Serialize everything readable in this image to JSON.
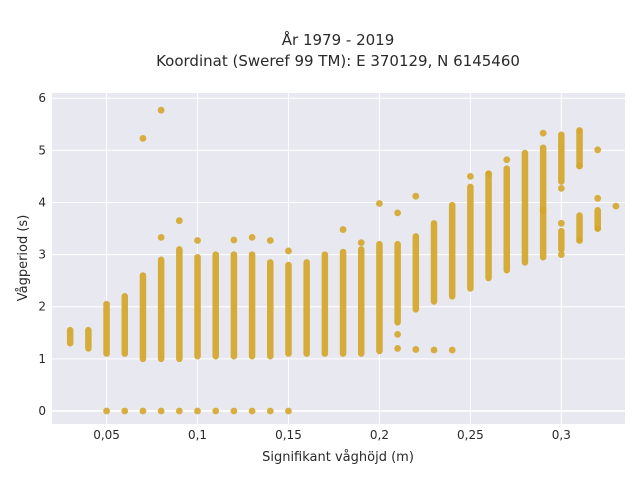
{
  "chart_data": {
    "type": "scatter",
    "title_lines": [
      "År 1979 - 2019",
      "Koordinat (Sweref 99 TM): E 370129, N 6145460"
    ],
    "xlabel": "Signifikant våghöjd (m)",
    "ylabel": "Vågperiod (s)",
    "xlim": [
      0.02,
      0.335
    ],
    "ylim": [
      -0.25,
      6.1
    ],
    "x_ticks": [
      0.05,
      0.1,
      0.15,
      0.2,
      0.25,
      0.3
    ],
    "x_tick_labels": [
      "0,05",
      "0,1",
      "0,15",
      "0,2",
      "0,25",
      "0,3"
    ],
    "y_ticks": [
      0,
      1,
      2,
      3,
      4,
      5,
      6
    ],
    "y_tick_labels": [
      "0",
      "1",
      "2",
      "3",
      "4",
      "5",
      "6"
    ],
    "grid": true,
    "background": "#e8e8f0",
    "marker_color": "#d4a62a",
    "columns": [
      {
        "x": 0.03,
        "ymin": 1.3,
        "ymax": 1.55
      },
      {
        "x": 0.04,
        "ymin": 1.2,
        "ymax": 1.55
      },
      {
        "x": 0.05,
        "ymin": 1.1,
        "ymax": 2.05
      },
      {
        "x": 0.06,
        "ymin": 1.1,
        "ymax": 2.2
      },
      {
        "x": 0.07,
        "ymin": 1.0,
        "ymax": 2.6
      },
      {
        "x": 0.08,
        "ymin": 1.0,
        "ymax": 2.9
      },
      {
        "x": 0.09,
        "ymin": 1.0,
        "ymax": 3.1
      },
      {
        "x": 0.1,
        "ymin": 1.05,
        "ymax": 2.95
      },
      {
        "x": 0.11,
        "ymin": 1.05,
        "ymax": 3.0
      },
      {
        "x": 0.12,
        "ymin": 1.05,
        "ymax": 3.0
      },
      {
        "x": 0.13,
        "ymin": 1.05,
        "ymax": 3.0
      },
      {
        "x": 0.14,
        "ymin": 1.05,
        "ymax": 2.85
      },
      {
        "x": 0.15,
        "ymin": 1.1,
        "ymax": 2.8
      },
      {
        "x": 0.16,
        "ymin": 1.1,
        "ymax": 2.85
      },
      {
        "x": 0.17,
        "ymin": 1.1,
        "ymax": 3.0
      },
      {
        "x": 0.18,
        "ymin": 1.1,
        "ymax": 3.05
      },
      {
        "x": 0.19,
        "ymin": 1.1,
        "ymax": 3.1
      },
      {
        "x": 0.2,
        "ymin": 1.15,
        "ymax": 3.2
      },
      {
        "x": 0.21,
        "ymin": 1.7,
        "ymax": 3.2
      },
      {
        "x": 0.22,
        "ymin": 1.95,
        "ymax": 3.35
      },
      {
        "x": 0.23,
        "ymin": 2.1,
        "ymax": 3.6
      },
      {
        "x": 0.24,
        "ymin": 2.2,
        "ymax": 3.95
      },
      {
        "x": 0.25,
        "ymin": 2.35,
        "ymax": 4.3
      },
      {
        "x": 0.26,
        "ymin": 2.55,
        "ymax": 4.55
      },
      {
        "x": 0.27,
        "ymin": 2.7,
        "ymax": 4.65
      },
      {
        "x": 0.28,
        "ymin": 2.85,
        "ymax": 4.95
      },
      {
        "x": 0.29,
        "ymin": 2.95,
        "ymax": 5.05
      },
      {
        "x": 0.3,
        "ymin": 3.1,
        "ymax": 3.45
      },
      {
        "x": 0.31,
        "ymin": 3.3,
        "ymax": 3.75
      },
      {
        "x": 0.32,
        "ymin": 3.5,
        "ymax": 3.85
      }
    ],
    "upper_clusters": [
      {
        "x": 0.3,
        "ymin": 4.4,
        "ymax": 5.3
      },
      {
        "x": 0.31,
        "ymin": 4.7,
        "ymax": 5.35
      }
    ],
    "points": [
      {
        "x": 0.05,
        "y": 0
      },
      {
        "x": 0.06,
        "y": 0
      },
      {
        "x": 0.07,
        "y": 0
      },
      {
        "x": 0.08,
        "y": 0
      },
      {
        "x": 0.09,
        "y": 0
      },
      {
        "x": 0.1,
        "y": 0
      },
      {
        "x": 0.11,
        "y": 0
      },
      {
        "x": 0.12,
        "y": 0
      },
      {
        "x": 0.13,
        "y": 0
      },
      {
        "x": 0.14,
        "y": 0
      },
      {
        "x": 0.15,
        "y": 0
      },
      {
        "x": 0.07,
        "y": 5.23
      },
      {
        "x": 0.08,
        "y": 5.77
      },
      {
        "x": 0.09,
        "y": 3.65
      },
      {
        "x": 0.08,
        "y": 3.33
      },
      {
        "x": 0.1,
        "y": 3.27
      },
      {
        "x": 0.13,
        "y": 3.33
      },
      {
        "x": 0.12,
        "y": 3.28
      },
      {
        "x": 0.14,
        "y": 3.27
      },
      {
        "x": 0.15,
        "y": 3.07
      },
      {
        "x": 0.18,
        "y": 3.48
      },
      {
        "x": 0.19,
        "y": 3.23
      },
      {
        "x": 0.2,
        "y": 3.98
      },
      {
        "x": 0.21,
        "y": 3.8
      },
      {
        "x": 0.21,
        "y": 1.47
      },
      {
        "x": 0.21,
        "y": 1.2
      },
      {
        "x": 0.22,
        "y": 4.12
      },
      {
        "x": 0.22,
        "y": 1.18
      },
      {
        "x": 0.23,
        "y": 1.17
      },
      {
        "x": 0.24,
        "y": 1.17
      },
      {
        "x": 0.25,
        "y": 4.5
      },
      {
        "x": 0.26,
        "y": 4.55
      },
      {
        "x": 0.27,
        "y": 4.82
      },
      {
        "x": 0.29,
        "y": 5.33
      },
      {
        "x": 0.29,
        "y": 3.85
      },
      {
        "x": 0.3,
        "y": 4.27
      },
      {
        "x": 0.3,
        "y": 3.6
      },
      {
        "x": 0.3,
        "y": 3.0
      },
      {
        "x": 0.31,
        "y": 5.38
      },
      {
        "x": 0.31,
        "y": 4.7
      },
      {
        "x": 0.31,
        "y": 3.27
      },
      {
        "x": 0.32,
        "y": 5.01
      },
      {
        "x": 0.32,
        "y": 4.08
      },
      {
        "x": 0.32,
        "y": 3.5
      },
      {
        "x": 0.33,
        "y": 3.93
      }
    ]
  }
}
